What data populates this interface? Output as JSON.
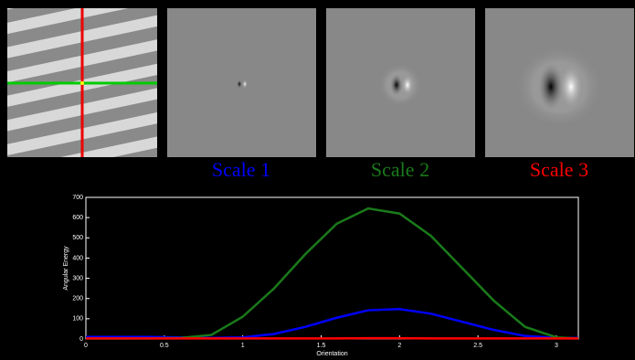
{
  "chart_data": {
    "type": "line",
    "x_label": "Orientation",
    "y_label": "Angular Energy",
    "x": [
      0,
      0.2,
      0.4,
      0.6,
      0.8,
      1.0,
      1.2,
      1.4,
      1.6,
      1.8,
      2.0,
      2.2,
      2.4,
      2.6,
      2.8,
      3.0,
      3.14
    ],
    "series": [
      {
        "name": "Scale 1",
        "color": "#0000ff",
        "values": [
          10,
          10,
          10,
          8,
          5,
          8,
          25,
          60,
          105,
          142,
          148,
          125,
          85,
          45,
          15,
          5,
          5
        ]
      },
      {
        "name": "Scale 2",
        "color": "#1a7a1a",
        "values": [
          2,
          2,
          3,
          5,
          20,
          110,
          250,
          420,
          570,
          645,
          620,
          510,
          350,
          190,
          60,
          8,
          2
        ]
      },
      {
        "name": "Scale 3",
        "color": "#ff0000",
        "values": [
          3,
          3,
          3,
          3,
          3,
          3,
          3,
          3,
          3,
          4,
          4,
          3,
          3,
          3,
          3,
          3,
          3
        ]
      }
    ],
    "xlim": [
      0,
      3.14
    ],
    "ylim": [
      0,
      700
    ],
    "xticks": [
      0,
      0.5,
      1,
      1.5,
      2,
      2.5,
      3
    ],
    "yticks": [
      0,
      100,
      200,
      300,
      400,
      500,
      600,
      700
    ]
  }
}
